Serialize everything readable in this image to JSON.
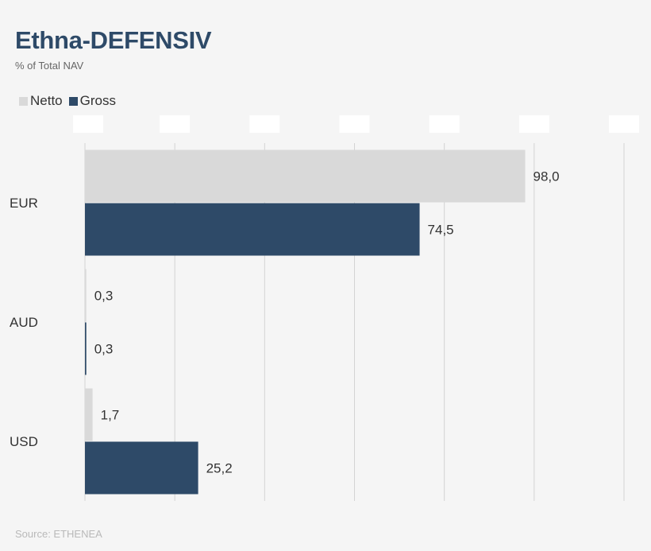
{
  "header": {
    "title": "Ethna-DEFENSIV",
    "subtitle": "% of Total NAV"
  },
  "legend": [
    {
      "name": "Netto",
      "color": "#d9d9d9"
    },
    {
      "name": "Gross",
      "color": "#2e4a68"
    }
  ],
  "footer": {
    "source": "Source: ETHENEA"
  },
  "chart_data": {
    "type": "bar",
    "orientation": "horizontal",
    "categories": [
      "EUR",
      "AUD",
      "USD"
    ],
    "series": [
      {
        "name": "Netto",
        "color": "#d9d9d9",
        "values": [
          98.0,
          0.3,
          1.7
        ],
        "labels": [
          "98,0",
          "0,3",
          "1,7"
        ]
      },
      {
        "name": "Gross",
        "color": "#2e4a68",
        "values": [
          74.5,
          0.3,
          25.2
        ],
        "labels": [
          "74,5",
          "0,3",
          "25,2"
        ]
      }
    ],
    "xlim": [
      0,
      120
    ],
    "x_tick_values": [
      0,
      20,
      40,
      60,
      80,
      100,
      120
    ],
    "grid": true,
    "legend_position": "top-left"
  }
}
